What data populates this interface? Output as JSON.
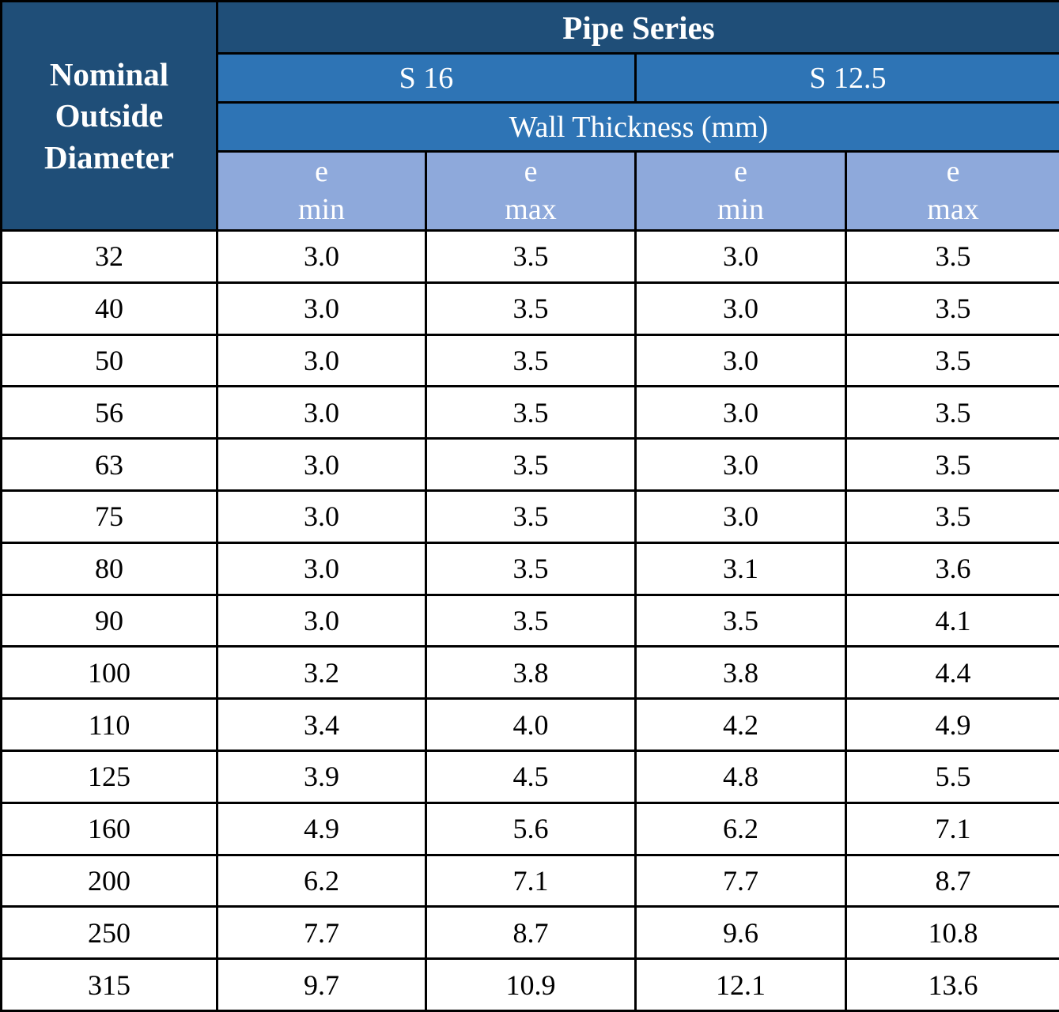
{
  "table": {
    "corner_header": "Nominal Outside Diameter",
    "top_header": "Pipe Series",
    "series": [
      {
        "label": "S 16"
      },
      {
        "label": "S 12.5"
      }
    ],
    "wall_thickness_header": "Wall Thickness (mm)",
    "sub_headers": [
      {
        "line1": "e",
        "line2": "min"
      },
      {
        "line1": "e",
        "line2": "max"
      },
      {
        "line1": "e",
        "line2": "min"
      },
      {
        "line1": "e",
        "line2": "max"
      }
    ],
    "columns": [
      "Nominal Outside Diameter",
      "S 16 e min",
      "S 16 e max",
      "S 12.5 e min",
      "S 12.5 e max"
    ],
    "rows": [
      [
        "32",
        "3.0",
        "3.5",
        "3.0",
        "3.5"
      ],
      [
        "40",
        "3.0",
        "3.5",
        "3.0",
        "3.5"
      ],
      [
        "50",
        "3.0",
        "3.5",
        "3.0",
        "3.5"
      ],
      [
        "56",
        "3.0",
        "3.5",
        "3.0",
        "3.5"
      ],
      [
        "63",
        "3.0",
        "3.5",
        "3.0",
        "3.5"
      ],
      [
        "75",
        "3.0",
        "3.5",
        "3.0",
        "3.5"
      ],
      [
        "80",
        "3.0",
        "3.5",
        "3.1",
        "3.6"
      ],
      [
        "90",
        "3.0",
        "3.5",
        "3.5",
        "4.1"
      ],
      [
        "100",
        "3.2",
        "3.8",
        "3.8",
        "4.4"
      ],
      [
        "110",
        "3.4",
        "4.0",
        "4.2",
        "4.9"
      ],
      [
        "125",
        "3.9",
        "4.5",
        "4.8",
        "5.5"
      ],
      [
        "160",
        "4.9",
        "5.6",
        "6.2",
        "7.1"
      ],
      [
        "200",
        "6.2",
        "7.1",
        "7.7",
        "8.7"
      ],
      [
        "250",
        "7.7",
        "8.7",
        "9.6",
        "10.8"
      ],
      [
        "315",
        "9.7",
        "10.9",
        "12.1",
        "13.6"
      ]
    ]
  },
  "colors": {
    "header_dark": "#1F4E78",
    "header_medium": "#2E74B5",
    "header_light": "#8EA9DB",
    "border": "#000000",
    "header_text": "#FFFFFF",
    "data_text": "#000000"
  }
}
